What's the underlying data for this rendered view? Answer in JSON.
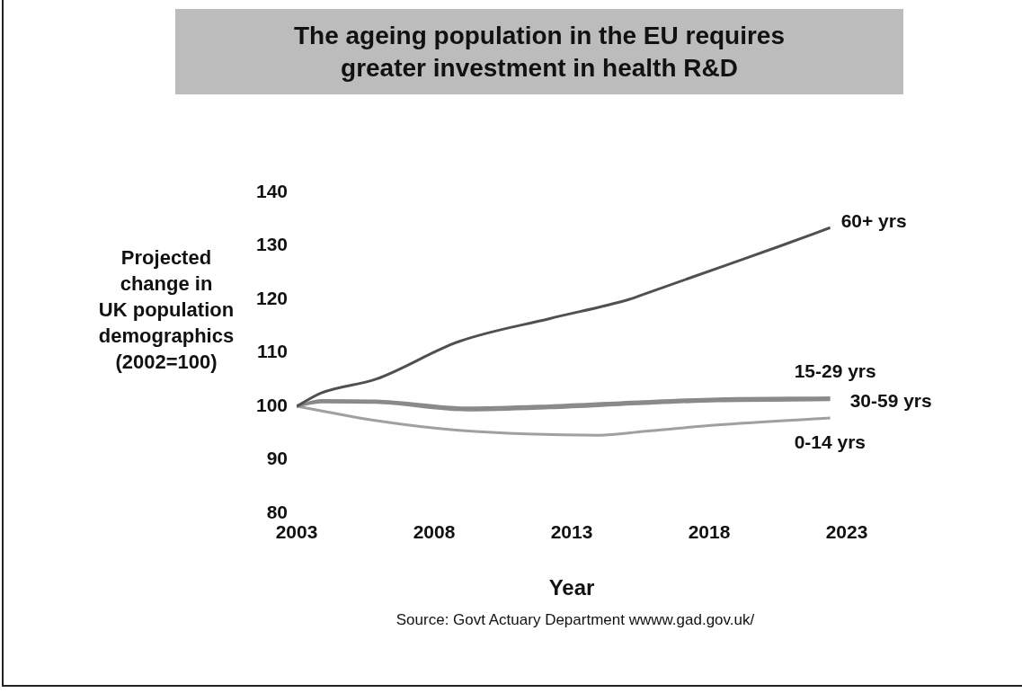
{
  "chart_data": {
    "type": "line",
    "title": "The ageing population in the EU requires\ngreater investment in health R&D",
    "ylabel": "Projected\nchange in\nUK population\ndemographics\n(2002=100)",
    "xlabel": "Year",
    "annotations": [
      "Source: Govt Actuary Department wwww.gad.gov.uk/"
    ],
    "xlim": [
      2003,
      2023
    ],
    "xticks": [
      2003,
      2008,
      2013,
      2018,
      2023
    ],
    "ylim": [
      80,
      140
    ],
    "yticks": [
      80,
      90,
      100,
      110,
      120,
      130,
      140
    ],
    "grid": false,
    "legend": false,
    "marker": "none",
    "line_style": "solid",
    "series": [
      {
        "name": "60+ yrs",
        "color": "#505050",
        "x": [
          2003,
          2003.9,
          2005.9,
          2008.9,
          2012.2,
          2015.1,
          2015.6,
          2018.4,
          2020.6,
          2022.4
        ],
        "values": [
          100,
          102.5,
          105.1,
          112.1,
          116.4,
          120,
          120.9,
          126,
          130,
          133.4
        ]
      },
      {
        "name": "15-29 yrs",
        "color": "#8a8a8a",
        "x": [
          2003,
          2003.9,
          2005.9,
          2009.2,
          2012.2,
          2015.6,
          2018.3,
          2022.4
        ],
        "values": [
          100,
          101.1,
          101,
          99.7,
          100.1,
          100.9,
          101.4,
          101.6
        ]
      },
      {
        "name": "30-59 yrs",
        "color": "#8a8a8a",
        "x": [
          2003,
          2003.9,
          2005.9,
          2009.2,
          2012.2,
          2015.6,
          2018.3,
          2022.4
        ],
        "values": [
          100,
          100.8,
          100.7,
          99.3,
          99.7,
          100.5,
          101,
          101.2
        ]
      },
      {
        "name": "0-14 yrs",
        "color": "#a0a0a0",
        "x": [
          2003,
          2005.9,
          2008.9,
          2014,
          2015.6,
          2018.3,
          2022.4
        ],
        "values": [
          100,
          97.3,
          95.5,
          94.6,
          95.3,
          96.5,
          97.8
        ]
      }
    ]
  }
}
